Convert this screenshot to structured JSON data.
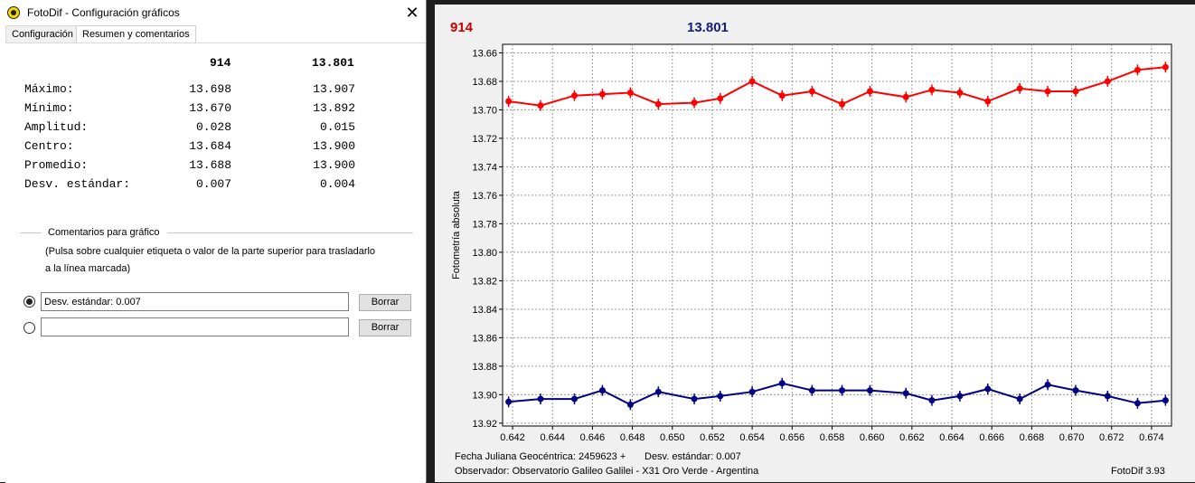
{
  "window": {
    "title": "FotoDif - Configuración gráficos",
    "close_label": "✕"
  },
  "tabs": [
    {
      "label": "Configuración"
    },
    {
      "label": "Resumen y comentarios"
    }
  ],
  "summary": {
    "headers": [
      "914",
      "13.801"
    ],
    "rows": [
      {
        "label": "Máximo:",
        "v1": "13.698",
        "v2": "13.907"
      },
      {
        "label": "Mínimo:",
        "v1": "13.670",
        "v2": "13.892"
      },
      {
        "label": "Amplitud:",
        "v1": "0.028",
        "v2": "0.015"
      },
      {
        "label": "Centro:",
        "v1": "13.684",
        "v2": "13.900"
      },
      {
        "label": "Promedio:",
        "v1": "13.688",
        "v2": "13.900"
      },
      {
        "label": "Desv. estándar:",
        "v1": "0.007",
        "v2": "0.004"
      }
    ]
  },
  "comments": {
    "group_title": "Comentarios para gráfico",
    "hint_line1": "(Pulsa sobre cualquier etiqueta o valor de la parte superior para trasladarlo",
    "hint_line2": "a la línea marcada)",
    "fields": [
      {
        "value": "Desv. estándar: 0.007",
        "checked": true,
        "button": "Borrar"
      },
      {
        "value": "",
        "checked": false,
        "button": "Borrar"
      }
    ]
  },
  "chart_header": {
    "series1": "914",
    "series2": "13.801"
  },
  "colors": {
    "series1": "#ff0000",
    "series2": "#000080",
    "header1": "#cc0000",
    "header2": "#1a1a80"
  },
  "footer": {
    "line1a": "Fecha Juliana Geocéntrica: 2459623 +",
    "line1b": "Desv. estándar: 0.007",
    "line2": "Observador: Observatorio Galileo Galilei - X31 Oro Verde - Argentina",
    "version": "FotoDif 3.93"
  },
  "chart_data": {
    "type": "line",
    "ylabel": "Fotometría absoluta",
    "xlabel": "",
    "xlim": [
      0.6415,
      0.675
    ],
    "ylim": [
      13.922,
      13.654
    ],
    "y_inverted": true,
    "grid": true,
    "x_ticks": [
      "0.642",
      "0.644",
      "0.646",
      "0.648",
      "0.650",
      "0.652",
      "0.654",
      "0.656",
      "0.658",
      "0.660",
      "0.662",
      "0.664",
      "0.666",
      "0.668",
      "0.670",
      "0.672",
      "0.674"
    ],
    "y_ticks": [
      "13.66",
      "13.68",
      "13.70",
      "13.72",
      "13.74",
      "13.76",
      "13.78",
      "13.80",
      "13.82",
      "13.84",
      "13.86",
      "13.88",
      "13.90",
      "13.92"
    ],
    "series": [
      {
        "name": "914",
        "x": [
          0.6418,
          0.6434,
          0.6451,
          0.6465,
          0.6479,
          0.6493,
          0.6511,
          0.6524,
          0.654,
          0.6555,
          0.657,
          0.6585,
          0.6599,
          0.6617,
          0.663,
          0.6644,
          0.6658,
          0.6674,
          0.6688,
          0.6702,
          0.6718,
          0.6733,
          0.6747
        ],
        "y": [
          13.694,
          13.697,
          13.69,
          13.689,
          13.688,
          13.696,
          13.695,
          13.692,
          13.68,
          13.69,
          13.687,
          13.696,
          13.687,
          13.691,
          13.686,
          13.688,
          13.694,
          13.685,
          13.687,
          13.687,
          13.68,
          13.672,
          13.67
        ]
      },
      {
        "name": "13.801",
        "x": [
          0.6418,
          0.6434,
          0.6451,
          0.6465,
          0.6479,
          0.6493,
          0.6511,
          0.6524,
          0.654,
          0.6555,
          0.657,
          0.6585,
          0.6599,
          0.6617,
          0.663,
          0.6644,
          0.6658,
          0.6674,
          0.6688,
          0.6702,
          0.6718,
          0.6733,
          0.6747
        ],
        "y": [
          13.905,
          13.903,
          13.903,
          13.897,
          13.907,
          13.898,
          13.903,
          13.901,
          13.898,
          13.892,
          13.897,
          13.897,
          13.897,
          13.899,
          13.904,
          13.901,
          13.896,
          13.903,
          13.893,
          13.897,
          13.901,
          13.906,
          13.904
        ]
      }
    ]
  }
}
